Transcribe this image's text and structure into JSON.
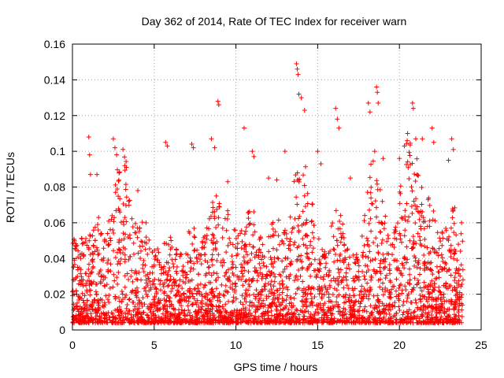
{
  "chart_data": {
    "type": "scatter",
    "title": "Day 362 of 2014, Rate Of TEC Index for receiver warn",
    "xlabel": "GPS time / hours",
    "ylabel": "ROTI / TECUs",
    "xlim": [
      0,
      25
    ],
    "ylim": [
      0,
      0.16
    ],
    "xticks": [
      0,
      5,
      10,
      15,
      20,
      25
    ],
    "xtick_labels": [
      "0",
      "5",
      "10",
      "15",
      "20",
      "25"
    ],
    "yticks": [
      0,
      0.02,
      0.04,
      0.06,
      0.08,
      0.1,
      0.12,
      0.14,
      0.16
    ],
    "ytick_labels": [
      "0",
      "0.02",
      "0.04",
      "0.06",
      "0.08",
      "0.1",
      "0.12",
      "0.14",
      "0.16"
    ],
    "grid": true,
    "marker": "+",
    "color": "#ff0000",
    "data_x_range": [
      0,
      23.9
    ],
    "series": [
      {
        "name": "ROTI",
        "points": [
          [
            0.1,
            0.02
          ],
          [
            0.2,
            0.045
          ],
          [
            0.3,
            0.03
          ],
          [
            0.5,
            0.04
          ],
          [
            1.0,
            0.108
          ],
          [
            1.05,
            0.098
          ],
          [
            1.1,
            0.087
          ],
          [
            1.5,
            0.087
          ],
          [
            1.6,
            0.063
          ],
          [
            2.5,
            0.107
          ],
          [
            2.6,
            0.102
          ],
          [
            2.7,
            0.098
          ],
          [
            2.9,
            0.066
          ],
          [
            3.2,
            0.092
          ],
          [
            3.3,
            0.091
          ],
          [
            4.0,
            0.078
          ],
          [
            4.5,
            0.06
          ],
          [
            5.7,
            0.105
          ],
          [
            5.8,
            0.103
          ],
          [
            7.3,
            0.104
          ],
          [
            7.4,
            0.102
          ],
          [
            8.5,
            0.107
          ],
          [
            8.7,
            0.102
          ],
          [
            8.9,
            0.128
          ],
          [
            8.95,
            0.126
          ],
          [
            9.5,
            0.083
          ],
          [
            10.5,
            0.113
          ],
          [
            11.0,
            0.1
          ],
          [
            11.1,
            0.097
          ],
          [
            12.0,
            0.085
          ],
          [
            12.5,
            0.084
          ],
          [
            13.0,
            0.1
          ],
          [
            13.7,
            0.149
          ],
          [
            13.75,
            0.146
          ],
          [
            13.8,
            0.143
          ],
          [
            13.85,
            0.132
          ],
          [
            14.0,
            0.13
          ],
          [
            14.2,
            0.123
          ],
          [
            15.0,
            0.1
          ],
          [
            15.2,
            0.093
          ],
          [
            16.1,
            0.124
          ],
          [
            16.2,
            0.118
          ],
          [
            16.3,
            0.113
          ],
          [
            17.0,
            0.085
          ],
          [
            18.1,
            0.127
          ],
          [
            18.2,
            0.122
          ],
          [
            18.6,
            0.136
          ],
          [
            18.65,
            0.133
          ],
          [
            18.7,
            0.127
          ],
          [
            19.0,
            0.096
          ],
          [
            20.0,
            0.096
          ],
          [
            20.3,
            0.103
          ],
          [
            20.5,
            0.11
          ],
          [
            20.8,
            0.127
          ],
          [
            20.85,
            0.124
          ],
          [
            21.0,
            0.107
          ],
          [
            21.4,
            0.107
          ],
          [
            22.0,
            0.113
          ],
          [
            22.1,
            0.105
          ],
          [
            23.0,
            0.095
          ],
          [
            23.2,
            0.107
          ],
          [
            23.3,
            0.101
          ],
          [
            23.8,
            0.06
          ]
        ]
      }
    ]
  }
}
